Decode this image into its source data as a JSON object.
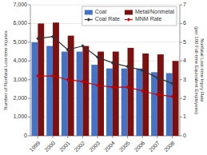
{
  "chart_data": {
    "type": "bar",
    "categories": [
      "1999",
      "2000",
      "2001",
      "2002",
      "2003",
      "2004",
      "2005",
      "2006",
      "2007",
      "2008"
    ],
    "series": [
      {
        "name": "Coal",
        "type": "bar",
        "color": "#4472C4",
        "values": [
          5000,
          4800,
          4500,
          4500,
          3800,
          3600,
          3600,
          3600,
          3400,
          3350
        ]
      },
      {
        "name": "Metal/Nonmetal",
        "type": "bar",
        "color": "#7B1010",
        "values": [
          6000,
          6050,
          5350,
          4800,
          4500,
          4500,
          4700,
          4400,
          4350,
          4000
        ]
      },
      {
        "name": "Coal Rate",
        "type": "line",
        "axis": "y2",
        "color": "#333333",
        "marker": "diamond",
        "values": [
          5.2,
          5.3,
          4.6,
          4.8,
          4.2,
          3.9,
          3.7,
          3.5,
          3.1,
          2.8
        ]
      },
      {
        "name": "MNM Rate",
        "type": "line",
        "axis": "y2",
        "color": "#CC0000",
        "marker": "diamond",
        "values": [
          3.2,
          3.2,
          3.0,
          2.9,
          2.7,
          2.6,
          2.6,
          2.4,
          2.2,
          2.1
        ]
      }
    ],
    "ylabel": "Number of Nonfatal Lost-time Injuries",
    "y2label": "Nonfatal Lost-time Injury Rate\n(per 100 Full-time Equivalent Employees)",
    "ylim": [
      0,
      7000
    ],
    "yticks": [
      0,
      {
        "value": 1000,
        "label": "1,000"
      },
      {
        "value": 2000,
        "label": "2,000"
      },
      {
        "value": 3000,
        "label": "3,000"
      },
      {
        "value": 4000,
        "label": "4,000"
      },
      {
        "value": 5000,
        "label": "5,000"
      },
      {
        "value": 6000,
        "label": "6,000"
      },
      {
        "value": 7000,
        "label": "7,000"
      }
    ],
    "y2lim": [
      0,
      7
    ],
    "y2ticks": [
      0,
      1,
      2,
      3,
      4,
      5,
      6,
      7
    ],
    "grid": true,
    "legend": "upper right"
  }
}
